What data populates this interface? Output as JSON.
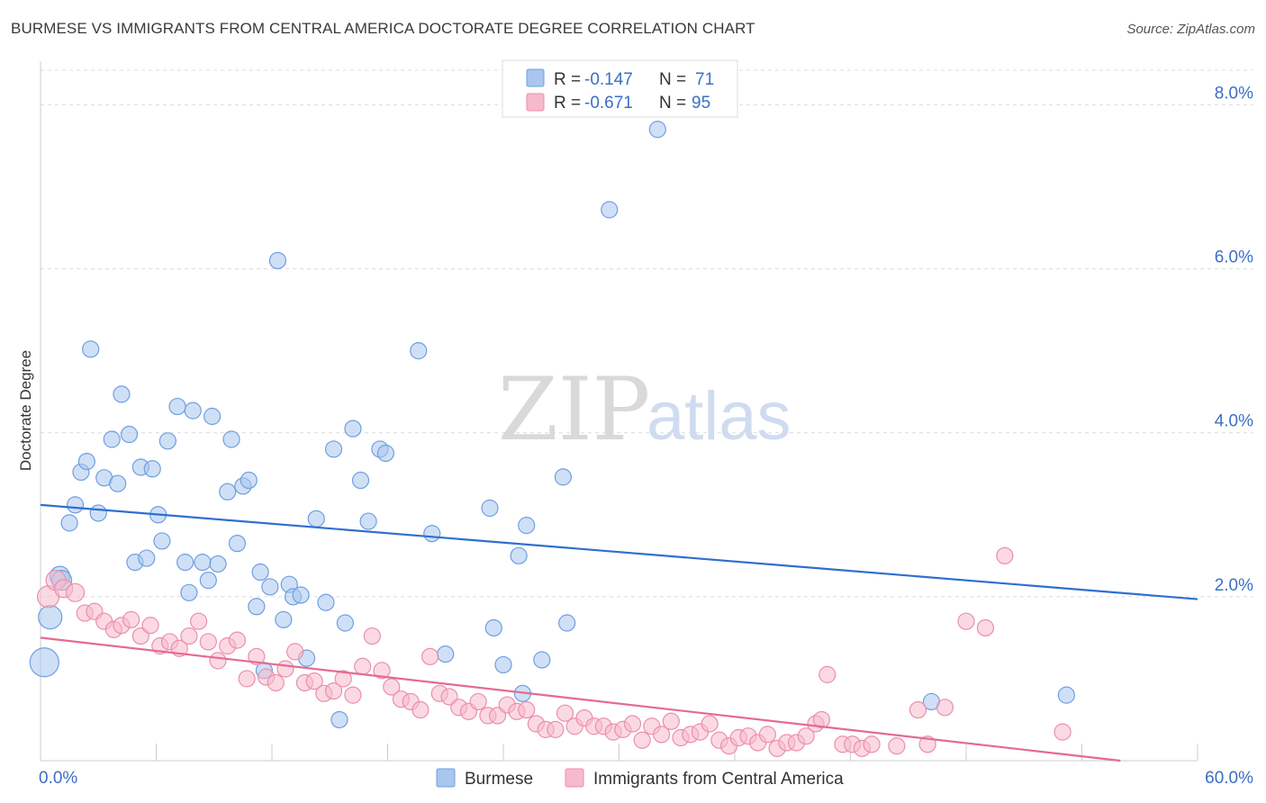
{
  "header": {
    "title": "BURMESE VS IMMIGRANTS FROM CENTRAL AMERICA DOCTORATE DEGREE CORRELATION CHART",
    "source": "Source: ZipAtlas.com"
  },
  "watermark": {
    "zip": "ZIP",
    "atlas": "atlas"
  },
  "stats_legend": [
    {
      "r_label": "R = ",
      "r_value": "-0.147",
      "n_label": "N = ",
      "n_value": "71",
      "color": "#a8c6ee",
      "stroke": "#6f9fe0"
    },
    {
      "r_label": "R = ",
      "r_value": "-0.671",
      "n_label": "N = ",
      "n_value": "95",
      "color": "#f7b9cc",
      "stroke": "#ea8fab"
    }
  ],
  "bottom_legend": [
    {
      "label": "Burmese",
      "color": "#a8c6ee",
      "stroke": "#6f9fe0"
    },
    {
      "label": "Immigrants from Central America",
      "color": "#f7b9cc",
      "stroke": "#ea8fab"
    }
  ],
  "chart_data": {
    "type": "scatter",
    "title": "BURMESE VS IMMIGRANTS FROM CENTRAL AMERICA DOCTORATE DEGREE CORRELATION CHART",
    "xlabel": "",
    "ylabel": "Doctorate Degree",
    "xlim": [
      0,
      60
    ],
    "ylim": [
      0,
      8.4
    ],
    "x_tick_labels": [
      {
        "value": 0,
        "label": "0.0%"
      },
      {
        "value": 60,
        "label": "60.0%"
      }
    ],
    "y_tick_labels": [
      {
        "value": 2,
        "label": "2.0%"
      },
      {
        "value": 4,
        "label": "4.0%"
      },
      {
        "value": 6,
        "label": "6.0%"
      },
      {
        "value": 8,
        "label": "8.0%"
      }
    ],
    "x_minor_ticks": [
      0,
      6,
      12,
      18,
      24,
      30,
      36,
      42,
      48,
      54,
      60
    ],
    "series": [
      {
        "name": "Burmese",
        "color": "#a8c6ee",
        "stroke": "#6f9fe0",
        "trend_color": "#2f6fd0",
        "trend": {
          "x0": 0,
          "y0": 3.12,
          "x1": 60,
          "y1": 1.97
        },
        "points": [
          [
            0.2,
            1.2,
            16
          ],
          [
            0.5,
            1.75,
            13
          ],
          [
            1.0,
            2.25,
            11
          ],
          [
            1.1,
            2.2,
            11
          ],
          [
            1.5,
            2.9,
            9
          ],
          [
            1.8,
            3.12,
            9
          ],
          [
            2.1,
            3.52,
            9
          ],
          [
            2.4,
            3.65,
            9
          ],
          [
            2.6,
            5.02,
            9
          ],
          [
            3.0,
            3.02,
            9
          ],
          [
            3.3,
            3.45,
            9
          ],
          [
            3.7,
            3.92,
            9
          ],
          [
            4.0,
            3.38,
            9
          ],
          [
            4.2,
            4.47,
            9
          ],
          [
            4.6,
            3.98,
            9
          ],
          [
            4.9,
            2.42,
            9
          ],
          [
            5.2,
            3.58,
            9
          ],
          [
            5.5,
            2.47,
            9
          ],
          [
            5.8,
            3.56,
            9
          ],
          [
            6.1,
            3.0,
            9
          ],
          [
            6.3,
            2.68,
            9
          ],
          [
            6.6,
            3.9,
            9
          ],
          [
            7.1,
            4.32,
            9
          ],
          [
            7.5,
            2.42,
            9
          ],
          [
            7.7,
            2.05,
            9
          ],
          [
            7.9,
            4.27,
            9
          ],
          [
            8.4,
            2.42,
            9
          ],
          [
            8.7,
            2.2,
            9
          ],
          [
            8.9,
            4.2,
            9
          ],
          [
            9.2,
            2.4,
            9
          ],
          [
            9.7,
            3.28,
            9
          ],
          [
            9.9,
            3.92,
            9
          ],
          [
            10.2,
            2.65,
            9
          ],
          [
            10.5,
            3.35,
            9
          ],
          [
            10.8,
            3.42,
            9
          ],
          [
            11.2,
            1.88,
            9
          ],
          [
            11.4,
            2.3,
            9
          ],
          [
            11.6,
            1.1,
            9
          ],
          [
            11.9,
            2.12,
            9
          ],
          [
            12.3,
            6.1,
            9
          ],
          [
            12.6,
            1.72,
            9
          ],
          [
            12.9,
            2.15,
            9
          ],
          [
            13.1,
            2.0,
            9
          ],
          [
            13.5,
            2.02,
            9
          ],
          [
            13.8,
            1.25,
            9
          ],
          [
            14.3,
            2.95,
            9
          ],
          [
            14.8,
            1.93,
            9
          ],
          [
            15.2,
            3.8,
            9
          ],
          [
            15.5,
            0.5,
            9
          ],
          [
            15.8,
            1.68,
            9
          ],
          [
            16.2,
            4.05,
            9
          ],
          [
            16.6,
            3.42,
            9
          ],
          [
            17.0,
            2.92,
            9
          ],
          [
            17.6,
            3.8,
            9
          ],
          [
            17.9,
            3.75,
            9
          ],
          [
            19.6,
            5.0,
            9
          ],
          [
            20.3,
            2.77,
            9
          ],
          [
            21.0,
            1.3,
            9
          ],
          [
            23.3,
            3.08,
            9
          ],
          [
            23.5,
            1.62,
            9
          ],
          [
            24.0,
            1.17,
            9
          ],
          [
            24.8,
            2.5,
            9
          ],
          [
            25.0,
            0.82,
            9
          ],
          [
            25.2,
            2.87,
            9
          ],
          [
            26.0,
            1.23,
            9
          ],
          [
            27.1,
            3.46,
            9
          ],
          [
            27.3,
            1.68,
            9
          ],
          [
            29.5,
            6.72,
            9
          ],
          [
            32.0,
            7.7,
            9
          ],
          [
            46.2,
            0.72,
            9
          ],
          [
            53.2,
            0.8,
            9
          ]
        ]
      },
      {
        "name": "Immigrants from Central America",
        "color": "#f7b9cc",
        "stroke": "#ea8fab",
        "trend_color": "#e46a93",
        "trend": {
          "x0": 0,
          "y0": 1.5,
          "x1": 56,
          "y1": 0.0
        },
        "points": [
          [
            0.4,
            2.0,
            12
          ],
          [
            0.8,
            2.2,
            11
          ],
          [
            1.2,
            2.1,
            10
          ],
          [
            1.8,
            2.05,
            10
          ],
          [
            2.3,
            1.8,
            9
          ],
          [
            2.8,
            1.82,
            9
          ],
          [
            3.3,
            1.7,
            9
          ],
          [
            3.8,
            1.6,
            9
          ],
          [
            4.2,
            1.65,
            9
          ],
          [
            4.7,
            1.72,
            9
          ],
          [
            5.2,
            1.52,
            9
          ],
          [
            5.7,
            1.65,
            9
          ],
          [
            6.2,
            1.4,
            9
          ],
          [
            6.7,
            1.45,
            9
          ],
          [
            7.2,
            1.37,
            9
          ],
          [
            7.7,
            1.52,
            9
          ],
          [
            8.2,
            1.7,
            9
          ],
          [
            8.7,
            1.45,
            9
          ],
          [
            9.2,
            1.22,
            9
          ],
          [
            9.7,
            1.4,
            9
          ],
          [
            10.2,
            1.47,
            9
          ],
          [
            10.7,
            1.0,
            9
          ],
          [
            11.2,
            1.27,
            9
          ],
          [
            11.7,
            1.02,
            9
          ],
          [
            12.2,
            0.95,
            9
          ],
          [
            12.7,
            1.12,
            9
          ],
          [
            13.2,
            1.33,
            9
          ],
          [
            13.7,
            0.95,
            9
          ],
          [
            14.2,
            0.97,
            9
          ],
          [
            14.7,
            0.82,
            9
          ],
          [
            15.2,
            0.85,
            9
          ],
          [
            15.7,
            1.0,
            9
          ],
          [
            16.2,
            0.8,
            9
          ],
          [
            16.7,
            1.15,
            9
          ],
          [
            17.2,
            1.52,
            9
          ],
          [
            17.7,
            1.1,
            9
          ],
          [
            18.2,
            0.9,
            9
          ],
          [
            18.7,
            0.75,
            9
          ],
          [
            19.2,
            0.72,
            9
          ],
          [
            19.7,
            0.62,
            9
          ],
          [
            20.2,
            1.27,
            9
          ],
          [
            20.7,
            0.82,
            9
          ],
          [
            21.2,
            0.78,
            9
          ],
          [
            21.7,
            0.65,
            9
          ],
          [
            22.2,
            0.6,
            9
          ],
          [
            22.7,
            0.72,
            9
          ],
          [
            23.2,
            0.55,
            9
          ],
          [
            23.7,
            0.55,
            9
          ],
          [
            24.2,
            0.68,
            9
          ],
          [
            24.7,
            0.6,
            9
          ],
          [
            25.2,
            0.62,
            9
          ],
          [
            25.7,
            0.45,
            9
          ],
          [
            26.2,
            0.38,
            9
          ],
          [
            26.7,
            0.38,
            9
          ],
          [
            27.2,
            0.58,
            9
          ],
          [
            27.7,
            0.42,
            9
          ],
          [
            28.2,
            0.52,
            9
          ],
          [
            28.7,
            0.42,
            9
          ],
          [
            29.2,
            0.42,
            9
          ],
          [
            29.7,
            0.35,
            9
          ],
          [
            30.2,
            0.38,
            9
          ],
          [
            30.7,
            0.45,
            9
          ],
          [
            31.2,
            0.25,
            9
          ],
          [
            31.7,
            0.42,
            9
          ],
          [
            32.2,
            0.32,
            9
          ],
          [
            32.7,
            0.48,
            9
          ],
          [
            33.2,
            0.28,
            9
          ],
          [
            33.7,
            0.32,
            9
          ],
          [
            34.2,
            0.35,
            9
          ],
          [
            34.7,
            0.45,
            9
          ],
          [
            35.2,
            0.25,
            9
          ],
          [
            35.7,
            0.18,
            9
          ],
          [
            36.2,
            0.28,
            9
          ],
          [
            36.7,
            0.3,
            9
          ],
          [
            37.2,
            0.22,
            9
          ],
          [
            37.7,
            0.32,
            9
          ],
          [
            38.2,
            0.15,
            9
          ],
          [
            38.7,
            0.22,
            9
          ],
          [
            39.2,
            0.22,
            9
          ],
          [
            39.7,
            0.3,
            9
          ],
          [
            40.2,
            0.45,
            9
          ],
          [
            40.5,
            0.5,
            9
          ],
          [
            40.8,
            1.05,
            9
          ],
          [
            41.6,
            0.2,
            9
          ],
          [
            42.1,
            0.2,
            9
          ],
          [
            42.6,
            0.15,
            9
          ],
          [
            43.1,
            0.2,
            9
          ],
          [
            45.5,
            0.62,
            9
          ],
          [
            46.0,
            0.2,
            9
          ],
          [
            46.9,
            0.65,
            9
          ],
          [
            48.0,
            1.7,
            9
          ],
          [
            49.0,
            1.62,
            9
          ],
          [
            50.0,
            2.5,
            9
          ],
          [
            53.0,
            0.35,
            9
          ],
          [
            44.4,
            0.18,
            9
          ]
        ]
      }
    ]
  }
}
